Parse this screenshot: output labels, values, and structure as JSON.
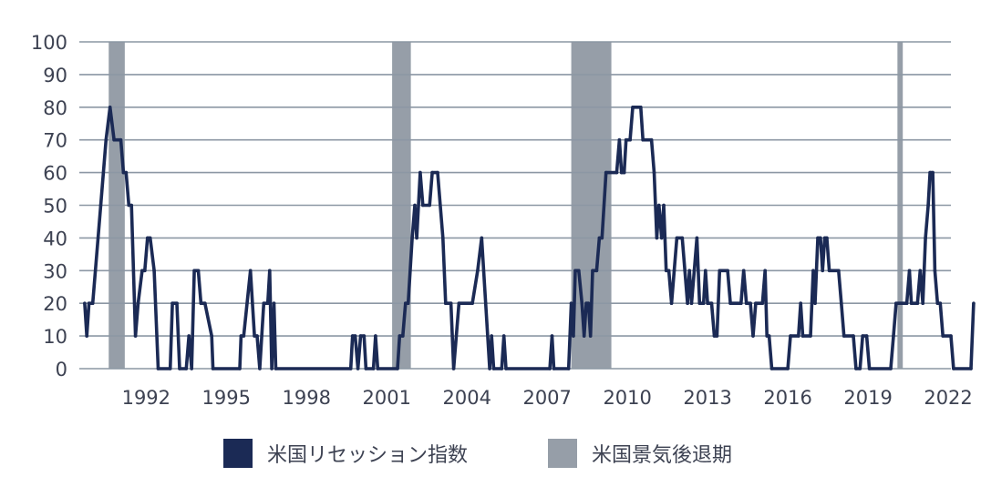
{
  "chart_data": {
    "type": "line",
    "title": "",
    "xlabel": "",
    "ylabel": "",
    "xlim": [
      1989.5,
      2022.1
    ],
    "ylim": [
      0,
      100
    ],
    "y_ticks": [
      0,
      10,
      20,
      30,
      40,
      50,
      60,
      70,
      80,
      90,
      100
    ],
    "x_ticks": [
      1992,
      1995,
      1998,
      2001,
      2004,
      2007,
      2010,
      2013,
      2016,
      2019,
      2022
    ],
    "grid": "horizontal",
    "legend_position": "bottom-center",
    "colors": {
      "line": "#1b2a55",
      "recession": "#969ea8",
      "grid": "#8c97a4",
      "text": "#3d4252"
    },
    "recessions": [
      {
        "start": 1990.6,
        "end": 1991.2
      },
      {
        "start": 2001.2,
        "end": 2001.9
      },
      {
        "start": 2007.9,
        "end": 2009.4
      },
      {
        "start": 2020.1,
        "end": 2020.3
      }
    ],
    "series": [
      {
        "name": "米国リセッション指数",
        "points": [
          [
            1989.7,
            20
          ],
          [
            1989.78,
            10
          ],
          [
            1989.86,
            20
          ],
          [
            1990.0,
            20
          ],
          [
            1990.3,
            50
          ],
          [
            1990.5,
            70
          ],
          [
            1990.65,
            80
          ],
          [
            1990.8,
            70
          ],
          [
            1991.05,
            70
          ],
          [
            1991.15,
            60
          ],
          [
            1991.25,
            60
          ],
          [
            1991.35,
            50
          ],
          [
            1991.45,
            50
          ],
          [
            1991.6,
            10
          ],
          [
            1991.7,
            20
          ],
          [
            1991.85,
            30
          ],
          [
            1991.95,
            30
          ],
          [
            1992.05,
            40
          ],
          [
            1992.15,
            40
          ],
          [
            1992.3,
            30
          ],
          [
            1992.45,
            0
          ],
          [
            1992.9,
            0
          ],
          [
            1992.98,
            20
          ],
          [
            1993.15,
            20
          ],
          [
            1993.25,
            0
          ],
          [
            1993.5,
            0
          ],
          [
            1993.6,
            10
          ],
          [
            1993.7,
            0
          ],
          [
            1993.8,
            30
          ],
          [
            1993.95,
            30
          ],
          [
            1994.05,
            20
          ],
          [
            1994.2,
            20
          ],
          [
            1994.45,
            10
          ],
          [
            1994.5,
            0
          ],
          [
            1995.5,
            0
          ],
          [
            1995.55,
            10
          ],
          [
            1995.65,
            10
          ],
          [
            1995.9,
            30
          ],
          [
            1996.05,
            10
          ],
          [
            1996.15,
            10
          ],
          [
            1996.25,
            0
          ],
          [
            1996.4,
            20
          ],
          [
            1996.55,
            20
          ],
          [
            1996.62,
            30
          ],
          [
            1996.7,
            0
          ],
          [
            1996.78,
            20
          ],
          [
            1996.85,
            0
          ],
          [
            1999.65,
            0
          ],
          [
            1999.72,
            10
          ],
          [
            1999.82,
            10
          ],
          [
            1999.92,
            0
          ],
          [
            2000.02,
            10
          ],
          [
            2000.15,
            10
          ],
          [
            2000.22,
            0
          ],
          [
            2000.5,
            0
          ],
          [
            2000.58,
            10
          ],
          [
            2000.66,
            0
          ],
          [
            2001.4,
            0
          ],
          [
            2001.48,
            10
          ],
          [
            2001.6,
            10
          ],
          [
            2001.7,
            20
          ],
          [
            2001.8,
            20
          ],
          [
            2001.95,
            40
          ],
          [
            2002.05,
            50
          ],
          [
            2002.12,
            40
          ],
          [
            2002.25,
            60
          ],
          [
            2002.35,
            50
          ],
          [
            2002.6,
            50
          ],
          [
            2002.7,
            60
          ],
          [
            2002.9,
            60
          ],
          [
            2003.1,
            40
          ],
          [
            2003.2,
            20
          ],
          [
            2003.4,
            20
          ],
          [
            2003.5,
            0
          ],
          [
            2003.7,
            20
          ],
          [
            2004.2,
            20
          ],
          [
            2004.4,
            30
          ],
          [
            2004.55,
            40
          ],
          [
            2004.7,
            20
          ],
          [
            2004.85,
            0
          ],
          [
            2004.92,
            10
          ],
          [
            2005.0,
            0
          ],
          [
            2005.3,
            0
          ],
          [
            2005.38,
            10
          ],
          [
            2005.46,
            0
          ],
          [
            2007.1,
            0
          ],
          [
            2007.18,
            10
          ],
          [
            2007.25,
            0
          ],
          [
            2007.8,
            0
          ],
          [
            2007.9,
            20
          ],
          [
            2007.98,
            10
          ],
          [
            2008.05,
            30
          ],
          [
            2008.18,
            30
          ],
          [
            2008.3,
            20
          ],
          [
            2008.38,
            10
          ],
          [
            2008.46,
            20
          ],
          [
            2008.54,
            20
          ],
          [
            2008.62,
            10
          ],
          [
            2008.7,
            30
          ],
          [
            2008.85,
            30
          ],
          [
            2008.95,
            40
          ],
          [
            2009.05,
            40
          ],
          [
            2009.2,
            60
          ],
          [
            2009.6,
            60
          ],
          [
            2009.7,
            70
          ],
          [
            2009.78,
            60
          ],
          [
            2009.88,
            60
          ],
          [
            2009.95,
            70
          ],
          [
            2010.1,
            70
          ],
          [
            2010.2,
            80
          ],
          [
            2010.5,
            80
          ],
          [
            2010.58,
            70
          ],
          [
            2010.9,
            70
          ],
          [
            2011.0,
            60
          ],
          [
            2011.1,
            40
          ],
          [
            2011.18,
            50
          ],
          [
            2011.28,
            40
          ],
          [
            2011.36,
            50
          ],
          [
            2011.45,
            30
          ],
          [
            2011.55,
            30
          ],
          [
            2011.65,
            20
          ],
          [
            2011.75,
            30
          ],
          [
            2011.85,
            40
          ],
          [
            2012.05,
            40
          ],
          [
            2012.15,
            30
          ],
          [
            2012.25,
            20
          ],
          [
            2012.32,
            30
          ],
          [
            2012.4,
            20
          ],
          [
            2012.5,
            30
          ],
          [
            2012.6,
            40
          ],
          [
            2012.7,
            20
          ],
          [
            2012.85,
            20
          ],
          [
            2012.92,
            30
          ],
          [
            2013.0,
            20
          ],
          [
            2013.15,
            20
          ],
          [
            2013.25,
            10
          ],
          [
            2013.35,
            10
          ],
          [
            2013.45,
            30
          ],
          [
            2013.75,
            30
          ],
          [
            2013.85,
            20
          ],
          [
            2014.25,
            20
          ],
          [
            2014.35,
            30
          ],
          [
            2014.45,
            20
          ],
          [
            2014.6,
            20
          ],
          [
            2014.7,
            10
          ],
          [
            2014.8,
            20
          ],
          [
            2015.05,
            20
          ],
          [
            2015.15,
            30
          ],
          [
            2015.22,
            10
          ],
          [
            2015.3,
            10
          ],
          [
            2015.4,
            0
          ],
          [
            2016.0,
            0
          ],
          [
            2016.1,
            10
          ],
          [
            2016.4,
            10
          ],
          [
            2016.48,
            20
          ],
          [
            2016.56,
            10
          ],
          [
            2016.85,
            10
          ],
          [
            2016.95,
            30
          ],
          [
            2017.02,
            20
          ],
          [
            2017.12,
            40
          ],
          [
            2017.22,
            40
          ],
          [
            2017.3,
            30
          ],
          [
            2017.38,
            40
          ],
          [
            2017.46,
            40
          ],
          [
            2017.55,
            30
          ],
          [
            2017.9,
            30
          ],
          [
            2018.0,
            20
          ],
          [
            2018.1,
            10
          ],
          [
            2018.45,
            10
          ],
          [
            2018.55,
            0
          ],
          [
            2018.7,
            0
          ],
          [
            2018.8,
            10
          ],
          [
            2018.95,
            10
          ],
          [
            2019.05,
            0
          ],
          [
            2019.85,
            0
          ],
          [
            2019.95,
            10
          ],
          [
            2020.05,
            20
          ],
          [
            2020.45,
            20
          ],
          [
            2020.55,
            30
          ],
          [
            2020.62,
            20
          ],
          [
            2020.85,
            20
          ],
          [
            2020.95,
            30
          ],
          [
            2021.05,
            20
          ],
          [
            2021.15,
            40
          ],
          [
            2021.25,
            50
          ],
          [
            2021.32,
            60
          ],
          [
            2021.42,
            60
          ],
          [
            2021.5,
            30
          ],
          [
            2021.6,
            20
          ],
          [
            2021.7,
            20
          ],
          [
            2021.8,
            10
          ],
          [
            2022.1,
            10
          ],
          [
            2022.2,
            0
          ],
          [
            2022.85,
            0
          ],
          [
            2022.95,
            20
          ]
        ]
      }
    ],
    "legend": [
      {
        "label": "米国リセッション指数",
        "color": "#1b2a55"
      },
      {
        "label": "米国景気後退期",
        "color": "#969ea8"
      }
    ]
  }
}
